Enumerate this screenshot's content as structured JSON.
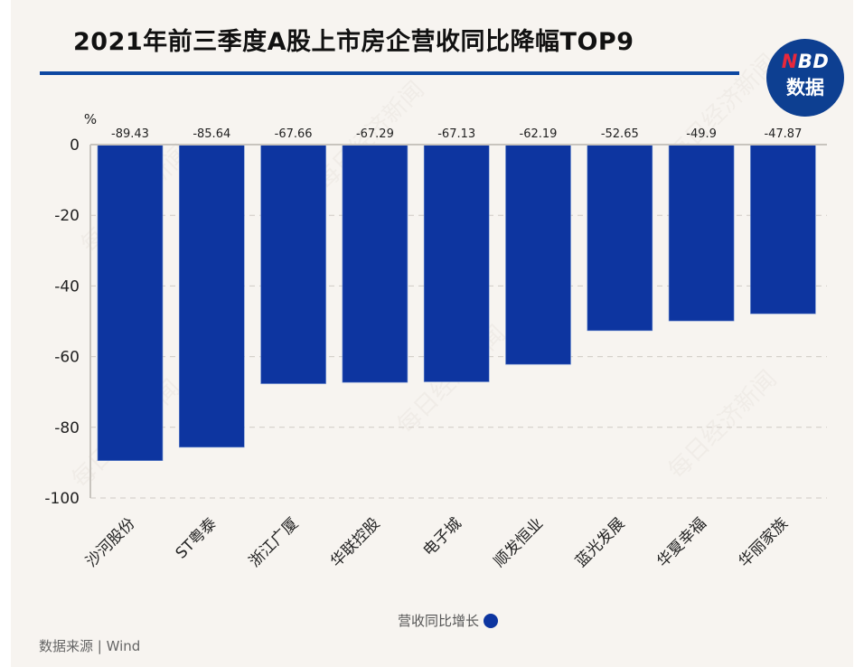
{
  "title": "2021年前三季度A股上市房企营收同比降幅TOP9",
  "logo": {
    "brand_accent": "N",
    "brand_rest": "BD",
    "subtitle": "数据",
    "icon": "nbd-data-logo"
  },
  "source": "数据来源 | Wind",
  "watermark": "每日经济新闻",
  "colors": {
    "bar": "#0d35a0",
    "title_rule": "#0d47a1",
    "background": "#f7f4f0",
    "logo_bg": "#0d3f91",
    "logo_accent": "#e8283c"
  },
  "chart_data": {
    "type": "bar",
    "title": "2021年前三季度A股上市房企营收同比降幅TOP9",
    "xlabel": "",
    "ylabel": "%",
    "ylim": [
      -100,
      0
    ],
    "yticks": [
      0,
      -20,
      -40,
      -60,
      -80,
      -100
    ],
    "grid": true,
    "legend_position": "bottom-center",
    "categories": [
      "沙河股份",
      "ST粤泰",
      "浙江广厦",
      "华联控股",
      "电子城",
      "顺发恒业",
      "蓝光发展",
      "华夏幸福",
      "华丽家族"
    ],
    "series": [
      {
        "name": "营收同比增长",
        "values": [
          -89.43,
          -85.64,
          -67.66,
          -67.29,
          -67.13,
          -62.19,
          -52.65,
          -49.9,
          -47.87
        ]
      }
    ],
    "data_labels": [
      "-89.43",
      "-85.64",
      "-67.66",
      "-67.29",
      "-67.13",
      "-62.19",
      "-52.65",
      "-49.9",
      "-47.87"
    ]
  }
}
